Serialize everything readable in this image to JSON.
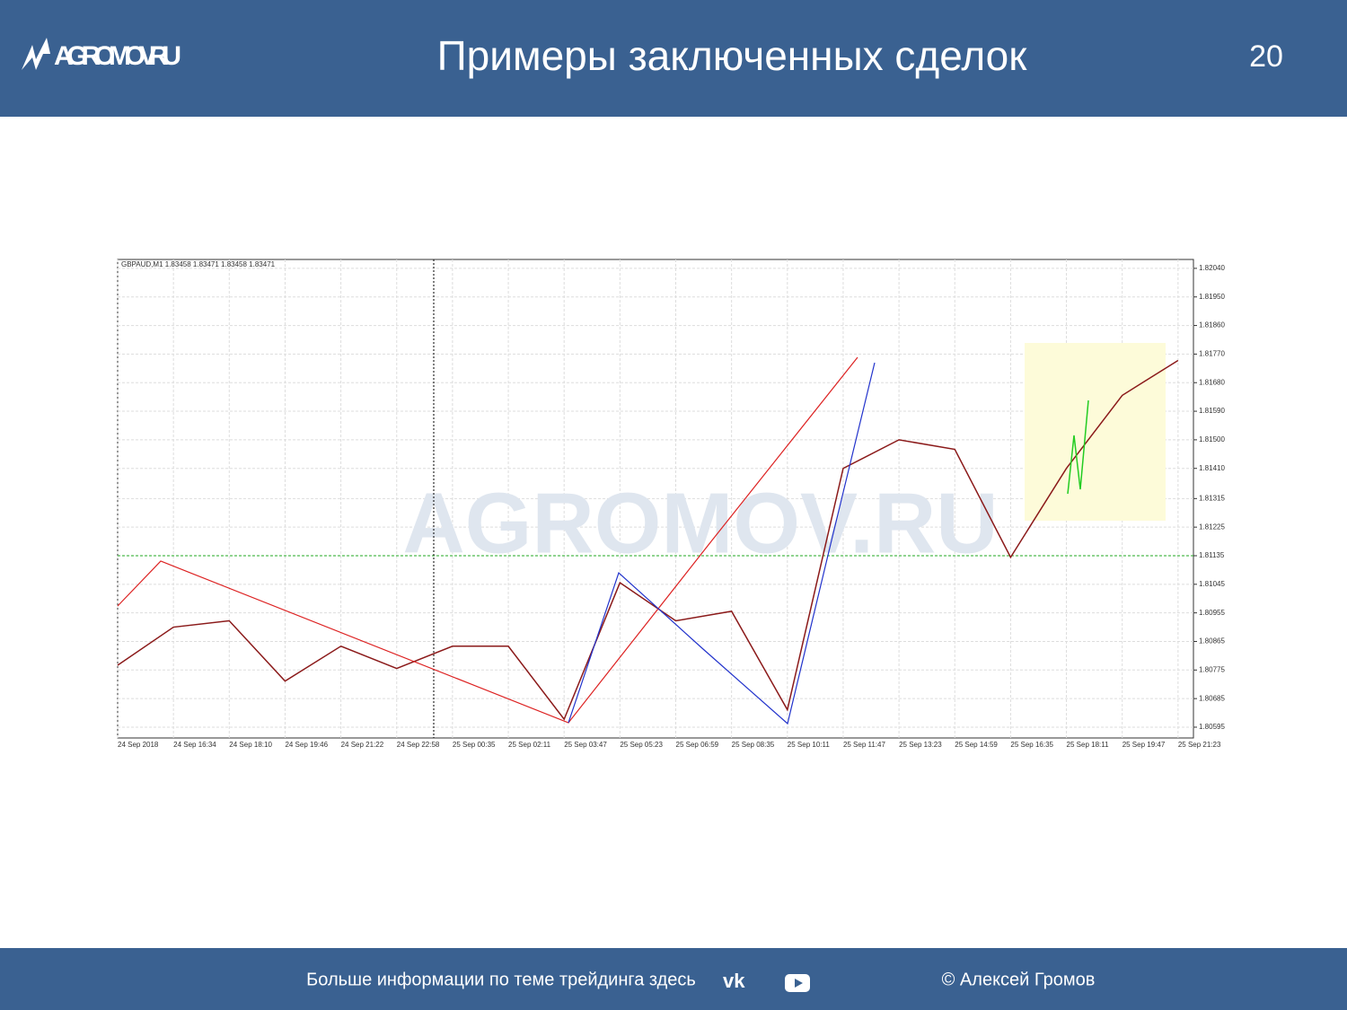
{
  "header": {
    "logo": "AGROMOV.RU",
    "title": "Примеры заключенных сделок",
    "page_number": "20"
  },
  "chart_data": {
    "type": "line",
    "info": "GBPAUD,M1  1.83458 1.83471 1.83458 1.83471",
    "watermark": "AGROMOV.RU",
    "categories": [
      "24 Sep 2018",
      "24 Sep 16:34",
      "24 Sep 18:10",
      "24 Sep 19:46",
      "24 Sep 21:22",
      "24 Sep 22:58",
      "25 Sep 00:35",
      "25 Sep 02:11",
      "25 Sep 03:47",
      "25 Sep 05:23",
      "25 Sep 06:59",
      "25 Sep 08:35",
      "25 Sep 10:11",
      "25 Sep 11:47",
      "25 Sep 13:23",
      "25 Sep 14:59",
      "25 Sep 16:35",
      "25 Sep 18:11",
      "25 Sep 19:47",
      "25 Sep 21:23"
    ],
    "series": [
      {
        "name": "GBPAUD",
        "color": "#8b1a1a",
        "values": [
          1.8079,
          1.8091,
          1.8093,
          1.8074,
          1.8085,
          1.8078,
          1.8085,
          1.8085,
          1.8062,
          1.8105,
          1.8093,
          1.8096,
          1.8065,
          1.8141,
          1.815,
          1.8147,
          1.8113,
          1.8141,
          1.8164,
          1.8175
        ]
      }
    ],
    "level": 1.81135,
    "ylim": [
      1.80561,
      1.82068
    ],
    "yticks": [
      {
        "value": 1.8204,
        "label": "1.82040"
      },
      {
        "value": 1.8195,
        "label": "1.81950"
      },
      {
        "value": 1.8186,
        "label": "1.81860"
      },
      {
        "value": 1.8177,
        "label": "1.81770"
      },
      {
        "value": 1.8168,
        "label": "1.81680"
      },
      {
        "value": 1.8159,
        "label": "1.81590"
      },
      {
        "value": 1.815,
        "label": "1.81500"
      },
      {
        "value": 1.8141,
        "label": "1.81410"
      },
      1.81315,
      1.81225,
      1.81135,
      1.81045,
      1.80955,
      1.80865,
      1.80775,
      1.80685,
      1.80595
    ],
    "grid": true
  },
  "footer": {
    "info": "Больше информации по теме трейдинга здесь",
    "author": "© Алексей Громов"
  }
}
